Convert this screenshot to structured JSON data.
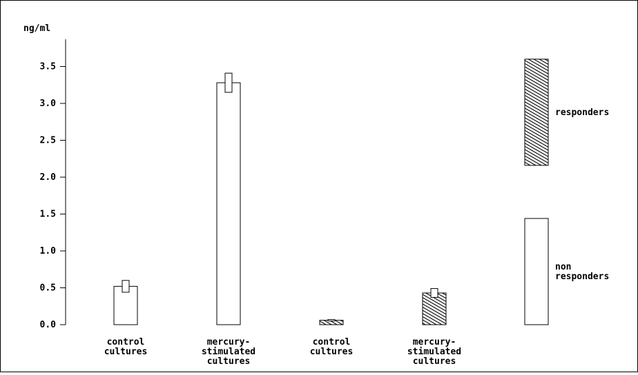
{
  "chart_data": {
    "type": "bar",
    "ylabel": "ng/ml",
    "yticks": [
      "0.0",
      "0.5",
      "1.0",
      "1.5",
      "2.0",
      "2.5",
      "3.0",
      "3.5"
    ],
    "ylim": [
      0,
      3.9
    ],
    "categories": [
      [
        "control",
        "cultures"
      ],
      [
        "mercury-",
        "stimulated",
        "cultures"
      ],
      [
        "control",
        "cultures"
      ],
      [
        "mercury-",
        "stimulated",
        "cultures"
      ]
    ],
    "bars": [
      {
        "group": "non responders",
        "value": 0.52,
        "error": 0.08
      },
      {
        "group": "non responders",
        "value": 3.28,
        "error": 0.13
      },
      {
        "group": "responders",
        "value": 0.06,
        "error": 0.01
      },
      {
        "group": "responders",
        "value": 0.43,
        "error": 0.06
      }
    ],
    "legend": [
      {
        "label_lines": [
          "responders"
        ],
        "pattern": "hatched"
      },
      {
        "label_lines": [
          "non",
          "responders"
        ],
        "pattern": "open"
      }
    ],
    "legend_placement": "right",
    "grid": false
  }
}
